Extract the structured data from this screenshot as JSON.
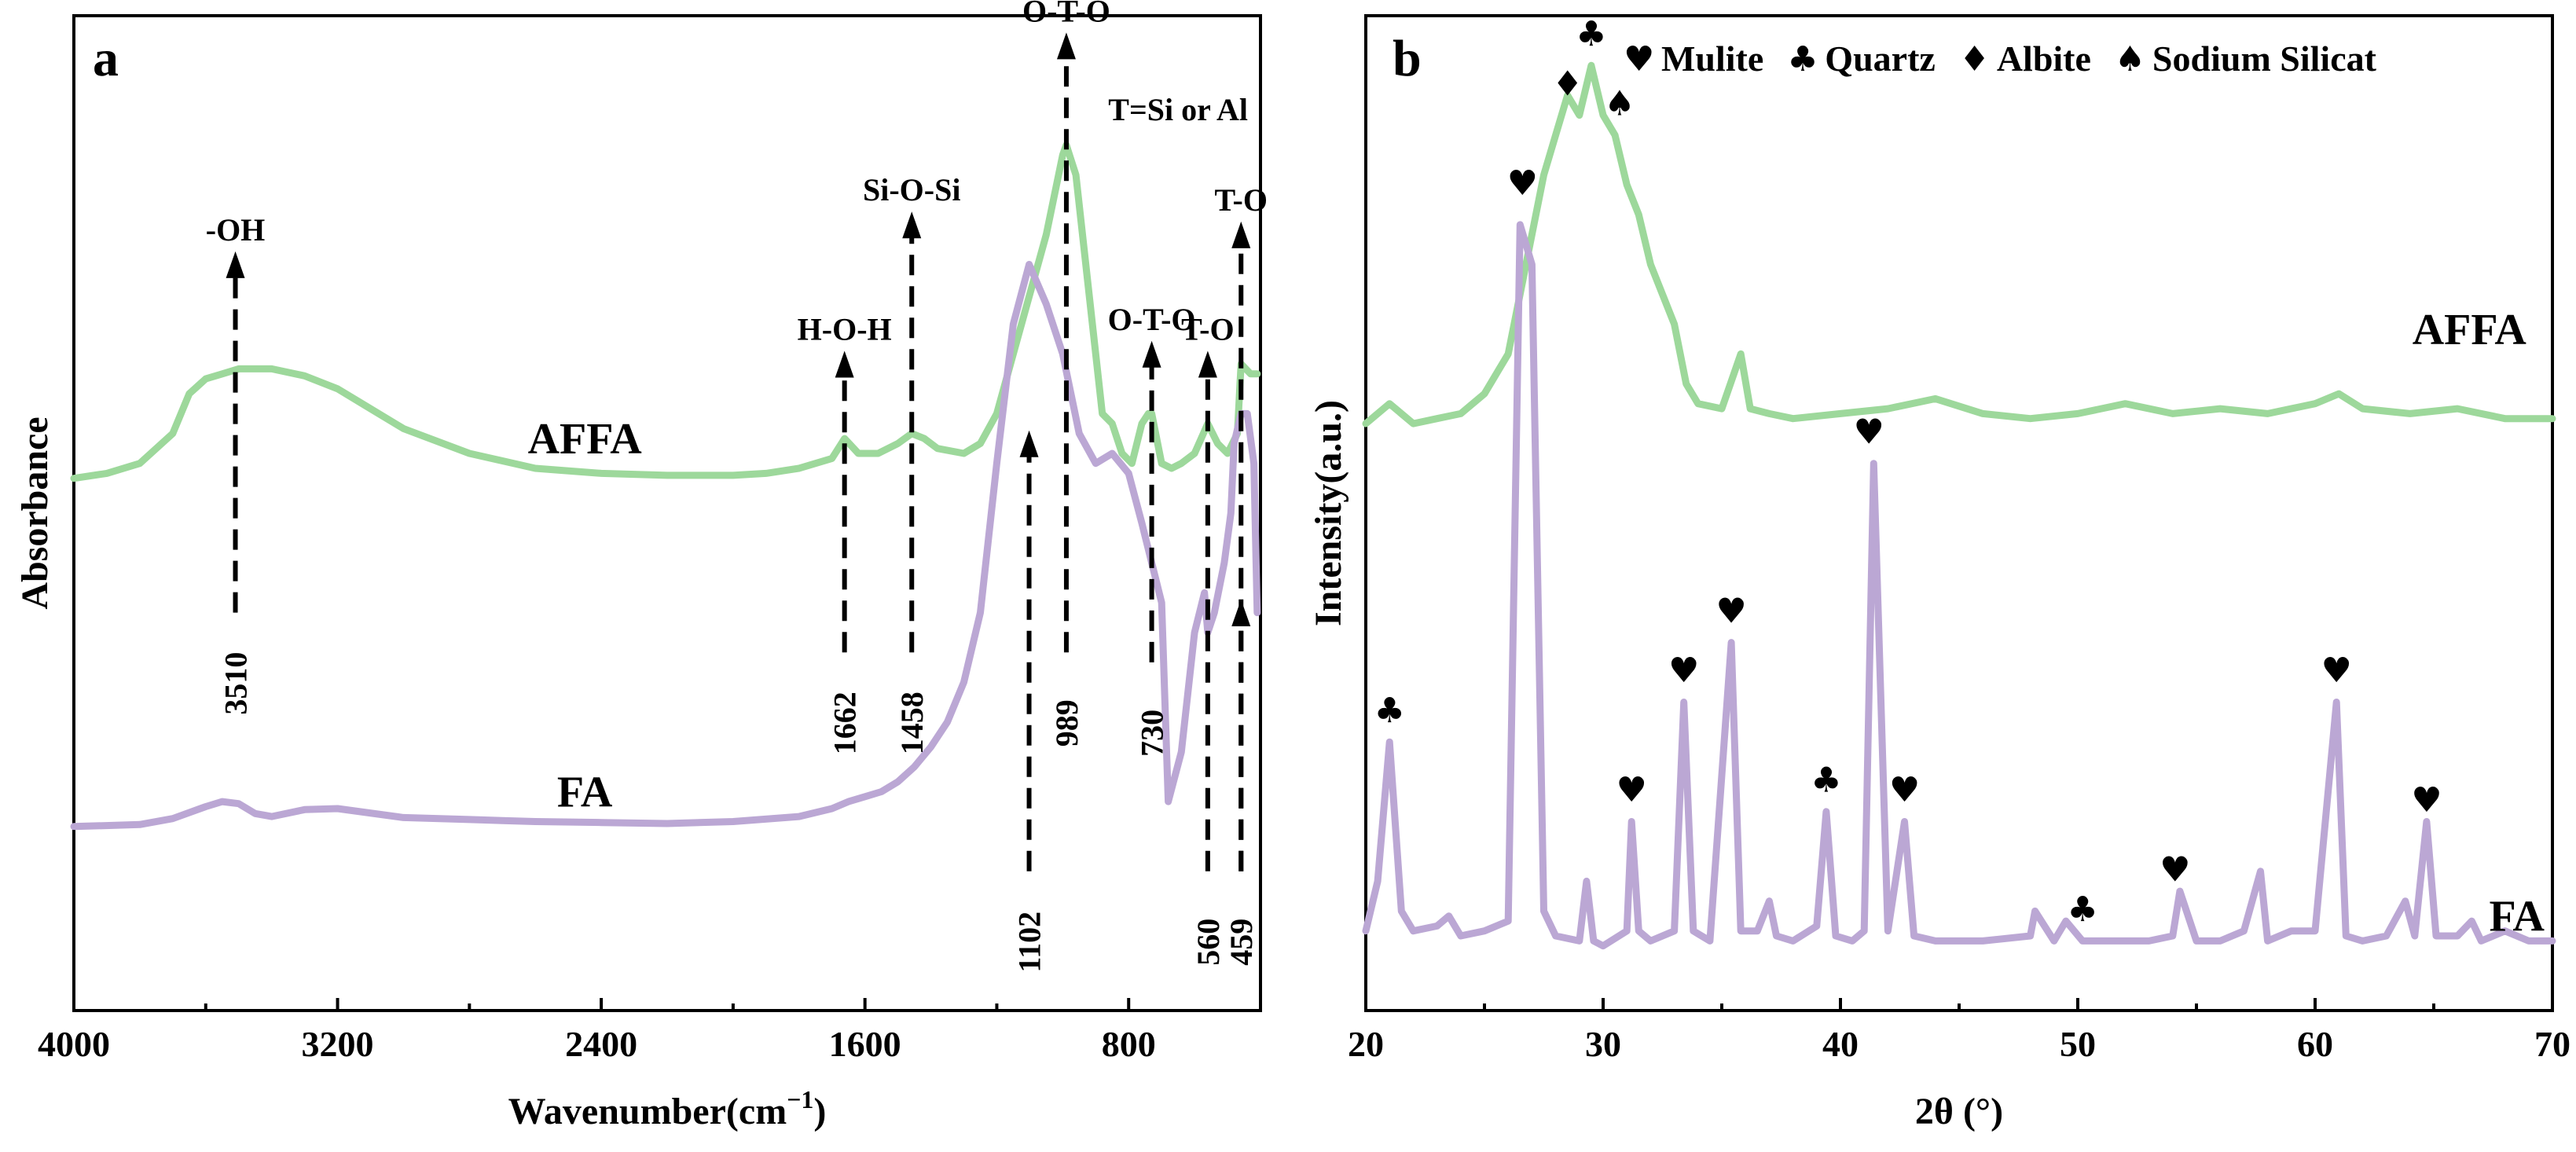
{
  "figure_a": {
    "letter": "a",
    "xlabel": "Wavenumber(cm",
    "xlabel_sup": "−1",
    "xlabel_end": ")",
    "ylabel": "Absorbance"
  },
  "figure_b": {
    "letter": "b",
    "xlabel": "2θ (°)",
    "ylabel": "Intensity(a.u.)"
  },
  "legend_b": [
    {
      "symbol": "♥",
      "label": "Mulite"
    },
    {
      "symbol": "♣",
      "label": "Quartz"
    },
    {
      "symbol": "♦",
      "label": "Albite"
    },
    {
      "symbol": "♠",
      "label": "Sodium Silicat"
    }
  ],
  "colors": {
    "affa": "#9dd89b",
    "fa": "#bba7d4"
  },
  "chart_data": [
    {
      "id": "ftir",
      "type": "line",
      "title": "",
      "xlabel": "Wavenumber(cm−1)",
      "ylabel": "Absorbance",
      "xlim": [
        4000,
        400
      ],
      "ylim": [
        0,
        100
      ],
      "xticks": [
        4000,
        3200,
        2400,
        1600,
        800
      ],
      "minor_xticks": [
        3600,
        2800,
        2000,
        1200,
        400
      ],
      "yticks_shown": false,
      "series": [
        {
          "name": "AFFA",
          "label_at": [
            2450,
            56
          ],
          "x": [
            4000,
            3900,
            3800,
            3700,
            3650,
            3600,
            3550,
            3500,
            3400,
            3300,
            3200,
            3100,
            3000,
            2800,
            2600,
            2400,
            2200,
            2000,
            1900,
            1800,
            1700,
            1662,
            1620,
            1560,
            1500,
            1458,
            1420,
            1380,
            1300,
            1250,
            1200,
            1150,
            1100,
            1050,
            1000,
            989,
            960,
            920,
            880,
            850,
            820,
            790,
            760,
            740,
            730,
            700,
            670,
            640,
            600,
            560,
            530,
            500,
            470,
            459,
            430,
            410
          ],
          "y": [
            53.5,
            54,
            55,
            58,
            62,
            63.5,
            64,
            64.5,
            64.5,
            63.8,
            62.5,
            60.5,
            58.5,
            56,
            54.5,
            54,
            53.8,
            53.8,
            54,
            54.5,
            55.5,
            57.5,
            56,
            56,
            57,
            58,
            57.5,
            56.5,
            56,
            57,
            60,
            66,
            72,
            78,
            86,
            87,
            84,
            72,
            60,
            59,
            56,
            55,
            59,
            60,
            60,
            55,
            54.5,
            55,
            56,
            59,
            57,
            56,
            58,
            65,
            64,
            64
          ]
        },
        {
          "name": "FA",
          "label_at": [
            2450,
            20.5
          ],
          "x": [
            4000,
            3800,
            3700,
            3600,
            3550,
            3500,
            3450,
            3400,
            3300,
            3200,
            3000,
            2800,
            2600,
            2400,
            2200,
            2000,
            1800,
            1700,
            1650,
            1600,
            1550,
            1500,
            1450,
            1400,
            1350,
            1300,
            1250,
            1200,
            1150,
            1102,
            1050,
            1000,
            950,
            900,
            850,
            800,
            760,
            730,
            700,
            680,
            640,
            600,
            570,
            560,
            540,
            510,
            490,
            480,
            459,
            440,
            420,
            410
          ],
          "y": [
            18.5,
            18.7,
            19.3,
            20.5,
            21,
            20.8,
            19.8,
            19.5,
            20.2,
            20.3,
            19.4,
            19.2,
            19,
            18.9,
            18.8,
            19,
            19.5,
            20.3,
            21,
            21.5,
            22,
            23,
            24.5,
            26.5,
            29,
            33,
            40,
            55,
            69,
            75,
            71,
            66,
            58,
            55,
            56,
            54,
            49,
            45,
            41,
            21,
            26,
            38,
            42,
            38,
            40,
            45,
            50,
            57,
            60,
            60,
            55,
            40
          ]
        }
      ],
      "annotations": [
        {
          "x": 3510,
          "label": "-OH",
          "value": "3510",
          "series": "AFFA",
          "direction": "up",
          "top": 76,
          "bottom": 40
        },
        {
          "x": 1662,
          "label": "H-O-H",
          "value": "1662",
          "series": "AFFA",
          "direction": "up",
          "top": 66,
          "bottom": 36
        },
        {
          "x": 1458,
          "label": "Si-O-Si",
          "value": "1458",
          "series": "AFFA",
          "direction": "up",
          "top": 80,
          "bottom": 36
        },
        {
          "x": 989,
          "label": "O-T-O",
          "value": "989",
          "series": "AFFA",
          "direction": "up",
          "top": 98,
          "bottom": 36
        },
        {
          "x": 730,
          "label": "O-T-O",
          "value": "730",
          "series": "AFFA",
          "direction": "up",
          "top": 67,
          "bottom": 35
        },
        {
          "x": 560,
          "label": "T-O",
          "value": "560",
          "series": "AFFA",
          "direction": "up",
          "top": 66,
          "bottom": 14
        },
        {
          "x": 459,
          "label": "T-O",
          "value": "459",
          "series": "AFFA",
          "direction": "up",
          "top": 79,
          "bottom": 14
        },
        {
          "x": 1102,
          "label": "",
          "value": "1102",
          "series": "FA",
          "direction": "up",
          "top": 58,
          "bottom": 14
        },
        {
          "x": 459,
          "label": "",
          "value": "",
          "series": "FA",
          "direction": "up",
          "top": 41,
          "bottom": 14
        }
      ],
      "note": "T=Si or Al"
    },
    {
      "id": "xrd",
      "type": "line",
      "title": "",
      "xlabel": "2θ (°)",
      "ylabel": "Intensity(a.u.)",
      "xlim": [
        20,
        70
      ],
      "ylim": [
        0,
        100
      ],
      "xticks": [
        20,
        30,
        40,
        50,
        60,
        70
      ],
      "minor_xticks": [
        25,
        35,
        45,
        55,
        65
      ],
      "yticks_shown": false,
      "series": [
        {
          "name": "AFFA",
          "label_at": [
            66.5,
            67
          ],
          "x": [
            20,
            21,
            22,
            23,
            24,
            25,
            26,
            26.5,
            27,
            27.5,
            28,
            28.5,
            29,
            29.5,
            30,
            30.5,
            31,
            31.5,
            32,
            32.5,
            33,
            33.5,
            34,
            35,
            35.8,
            36.2,
            37,
            38,
            40,
            42,
            44,
            46,
            48,
            50,
            52,
            54,
            56,
            58,
            60,
            61,
            62,
            64,
            66,
            68,
            70
          ],
          "y": [
            59,
            61,
            59,
            59.5,
            60,
            62,
            66,
            72,
            78,
            84,
            88,
            92,
            90,
            95,
            90,
            88,
            83,
            80,
            75,
            72,
            69,
            63,
            61,
            60.5,
            66,
            60.5,
            60,
            59.5,
            60,
            60.5,
            61.5,
            60,
            59.5,
            60,
            61,
            60,
            60.5,
            60,
            61,
            62,
            60.5,
            60,
            60.5,
            59.5,
            59.5
          ]
        },
        {
          "name": "FA",
          "label_at": [
            68.5,
            8
          ],
          "x": [
            20,
            20.5,
            21,
            21.5,
            22,
            23,
            23.5,
            24,
            25,
            26,
            26.5,
            27,
            27.5,
            28,
            29,
            29.3,
            29.6,
            30,
            31,
            31.2,
            31.5,
            32,
            33,
            33.4,
            33.8,
            34.5,
            35.4,
            35.8,
            36.5,
            37,
            37.3,
            38,
            39,
            39.4,
            39.8,
            40.5,
            41,
            41.4,
            42,
            42.7,
            43.1,
            44,
            46,
            48,
            48.2,
            49,
            49.5,
            50.2,
            51,
            53,
            54,
            54.3,
            55,
            56,
            57,
            57.7,
            58,
            59,
            60,
            60.9,
            61.3,
            62,
            63,
            63.8,
            64.2,
            64.7,
            65.1,
            66,
            66.6,
            67,
            68,
            69,
            70
          ],
          "y": [
            8,
            13,
            27,
            10,
            8,
            8.5,
            9.5,
            7.5,
            8,
            9,
            79,
            75,
            10,
            7.5,
            7,
            13,
            7,
            6.5,
            8,
            19,
            8,
            7,
            8,
            31,
            8,
            7,
            37,
            8,
            8,
            11,
            7.5,
            7,
            8.5,
            20,
            7.5,
            7,
            8,
            55,
            8,
            19,
            7.5,
            7,
            7,
            7.5,
            10,
            7,
            9,
            7,
            7,
            7,
            7.5,
            12,
            7,
            7,
            8,
            14,
            7,
            8,
            8,
            31,
            7.5,
            7,
            7.5,
            11,
            7.5,
            19,
            7.5,
            7.5,
            9,
            7,
            8,
            7,
            7
          ]
        }
      ],
      "peak_markers_FA": [
        {
          "x": 21.0,
          "y": 29,
          "symbol": "♣"
        },
        {
          "x": 26.6,
          "y": 82,
          "symbol": "♥"
        },
        {
          "x": 31.2,
          "y": 21,
          "symbol": "♥"
        },
        {
          "x": 33.4,
          "y": 33,
          "symbol": "♥"
        },
        {
          "x": 35.4,
          "y": 39,
          "symbol": "♥"
        },
        {
          "x": 39.4,
          "y": 22,
          "symbol": "♣"
        },
        {
          "x": 41.2,
          "y": 57,
          "symbol": "♥"
        },
        {
          "x": 42.7,
          "y": 21,
          "symbol": "♥"
        },
        {
          "x": 50.2,
          "y": 9,
          "symbol": "♣"
        },
        {
          "x": 54.1,
          "y": 13,
          "symbol": "♥"
        },
        {
          "x": 60.9,
          "y": 33,
          "symbol": "♥"
        },
        {
          "x": 64.7,
          "y": 20,
          "symbol": "♥"
        }
      ],
      "peak_markers_AFFA": [
        {
          "x": 28.5,
          "y": 92,
          "symbol": "♦"
        },
        {
          "x": 29.5,
          "y": 97,
          "symbol": "♣"
        },
        {
          "x": 30.7,
          "y": 90,
          "symbol": "♠"
        }
      ]
    }
  ]
}
